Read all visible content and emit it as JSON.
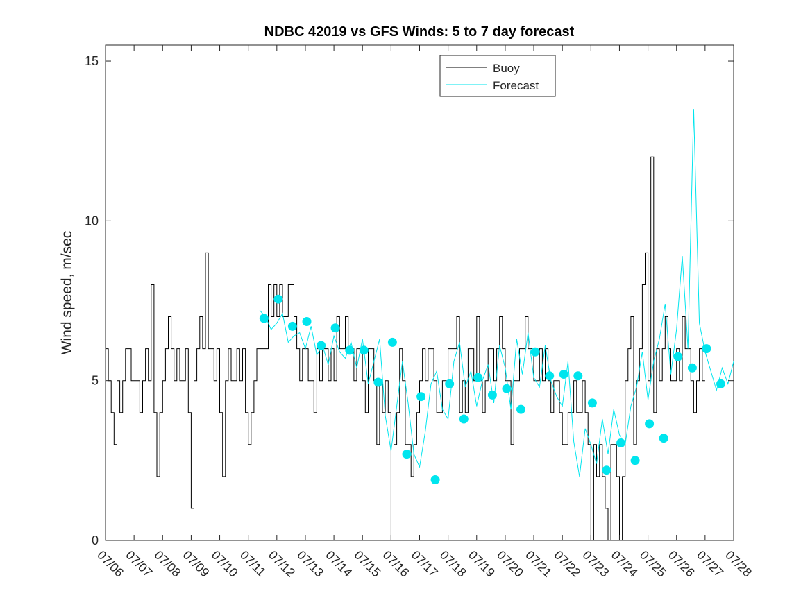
{
  "chart_data": {
    "type": "line",
    "title": "NDBC 42019 vs GFS Winds: 5 to 7 day forecast",
    "xlabel": "",
    "ylabel": "Wind speed, m/sec",
    "xlim": [
      "07/06",
      "07/28"
    ],
    "ylim": [
      0,
      15.5
    ],
    "yticks": [
      0,
      5,
      10,
      15
    ],
    "xtick_labels": [
      "07/06",
      "07/07",
      "07/08",
      "07/09",
      "07/10",
      "07/11",
      "07/12",
      "07/13",
      "07/14",
      "07/15",
      "07/16",
      "07/17",
      "07/18",
      "07/19",
      "07/20",
      "07/21",
      "07/22",
      "07/23",
      "07/24",
      "07/25",
      "07/26",
      "07/27",
      "07/28"
    ],
    "grid": false,
    "legend_position": "top-right",
    "colors": {
      "buoy": "#000000",
      "forecast": "#00e5ee"
    },
    "series": [
      {
        "name": "Buoy",
        "type": "step",
        "x_days_since_0706": [
          0,
          0.1,
          0.2,
          0.3,
          0.4,
          0.5,
          0.6,
          0.7,
          0.8,
          0.9,
          1,
          1.1,
          1.2,
          1.3,
          1.4,
          1.5,
          1.6,
          1.7,
          1.8,
          1.9,
          2,
          2.1,
          2.2,
          2.3,
          2.4,
          2.5,
          2.6,
          2.7,
          2.8,
          2.9,
          3,
          3.1,
          3.2,
          3.3,
          3.4,
          3.5,
          3.6,
          3.7,
          3.8,
          3.9,
          4,
          4.1,
          4.2,
          4.3,
          4.4,
          4.5,
          4.6,
          4.7,
          4.8,
          4.9,
          5,
          5.1,
          5.2,
          5.3,
          5.4,
          5.5,
          5.6,
          5.7,
          5.8,
          5.9,
          6,
          6.1,
          6.2,
          6.3,
          6.4,
          6.5,
          6.6,
          6.7,
          6.8,
          6.9,
          7,
          7.1,
          7.2,
          7.3,
          7.4,
          7.5,
          7.6,
          7.7,
          7.8,
          7.9,
          8,
          8.1,
          8.2,
          8.3,
          8.4,
          8.5,
          8.6,
          8.7,
          8.8,
          8.9,
          9,
          9.1,
          9.2,
          9.3,
          9.4,
          9.5,
          9.6,
          9.7,
          9.8,
          9.9,
          10,
          10.1,
          10.2,
          10.3,
          10.4,
          10.5,
          10.6,
          10.7,
          10.8,
          10.9,
          11,
          11.1,
          11.2,
          11.3,
          11.4,
          11.5,
          11.6,
          11.7,
          11.8,
          11.9,
          12,
          12.1,
          12.2,
          12.3,
          12.4,
          12.5,
          12.6,
          12.7,
          12.8,
          12.9,
          13,
          13.1,
          13.2,
          13.3,
          13.4,
          13.5,
          13.6,
          13.7,
          13.8,
          13.9,
          14,
          14.1,
          14.2,
          14.3,
          14.4,
          14.5,
          14.6,
          14.7,
          14.8,
          14.9,
          15,
          15.1,
          15.2,
          15.3,
          15.4,
          15.5,
          15.6,
          15.7,
          15.8,
          15.9,
          16,
          16.1,
          16.2,
          16.3,
          16.4,
          16.5,
          16.6,
          16.7,
          16.8,
          16.9,
          17,
          17.1,
          17.2,
          17.3,
          17.4,
          17.5,
          17.6,
          17.7,
          17.8,
          17.9,
          18,
          18.1,
          18.2,
          18.3,
          18.4,
          18.5,
          18.6,
          18.7,
          18.8,
          18.9,
          19,
          19.1,
          19.2,
          19.3,
          19.4,
          19.5,
          19.6,
          19.7,
          19.8,
          19.9,
          20,
          20.1,
          20.2,
          20.3,
          20.4,
          20.5,
          20.6,
          20.7,
          20.8,
          20.9,
          21,
          21.1,
          21.2,
          21.3,
          21.4,
          21.5,
          21.6,
          21.7,
          21.8,
          21.9
        ],
        "values": [
          6,
          5,
          4,
          3,
          5,
          4,
          5,
          6,
          6,
          5,
          5,
          5,
          4,
          5,
          6,
          5,
          8,
          4,
          2,
          4,
          5,
          6,
          7,
          6,
          5,
          6,
          5,
          5,
          6,
          4,
          1,
          5,
          6,
          7,
          6,
          9,
          6,
          6,
          5,
          6,
          4,
          2,
          5,
          6,
          5,
          5,
          6,
          5,
          6,
          4,
          3,
          4,
          5,
          6,
          6,
          6,
          6,
          8,
          7,
          8,
          7,
          8,
          7,
          7,
          8,
          8,
          7,
          6,
          5,
          6,
          6,
          5,
          5,
          4,
          6,
          5,
          6,
          6,
          5,
          6,
          5,
          7,
          6,
          6,
          7,
          6,
          6,
          5,
          6,
          6,
          5,
          4,
          6,
          6,
          5,
          3,
          5,
          4,
          5,
          4,
          0,
          3,
          4,
          6,
          5,
          3,
          3,
          2,
          3,
          4,
          5,
          6,
          5,
          6,
          6,
          5,
          4,
          4,
          5,
          5,
          6,
          6,
          6,
          7,
          4,
          5,
          4,
          6,
          6,
          5,
          7,
          5,
          4,
          5,
          6,
          6,
          5,
          6,
          7,
          6,
          5,
          5,
          3,
          5,
          5,
          6,
          6,
          7,
          6,
          6,
          5,
          5,
          6,
          5,
          6,
          5,
          4,
          5,
          5,
          4,
          3,
          3,
          4,
          4,
          5,
          4,
          4,
          5,
          4,
          3,
          0,
          3,
          2,
          3,
          2,
          1,
          0,
          3,
          3,
          2,
          0,
          2,
          5,
          6,
          7,
          3,
          5,
          6,
          8,
          9,
          5,
          12,
          4,
          6,
          5,
          6,
          7,
          6,
          5,
          5,
          6,
          5,
          7,
          6,
          6,
          5,
          4,
          5,
          6,
          5
        ]
      },
      {
        "name": "Forecast",
        "type": "line",
        "x_days_since_0706": [
          5.4,
          5.6,
          5.8,
          6.0,
          6.2,
          6.4,
          6.6,
          6.8,
          7.0,
          7.2,
          7.4,
          7.6,
          7.8,
          8.0,
          8.2,
          8.4,
          8.6,
          8.8,
          9.0,
          9.2,
          9.4,
          9.6,
          9.8,
          10.0,
          10.2,
          10.4,
          10.6,
          10.8,
          11.0,
          11.2,
          11.4,
          11.6,
          11.8,
          12.0,
          12.2,
          12.4,
          12.6,
          12.8,
          13.0,
          13.2,
          13.4,
          13.6,
          13.8,
          14.0,
          14.2,
          14.4,
          14.6,
          14.8,
          15.0,
          15.2,
          15.4,
          15.6,
          15.8,
          16.0,
          16.2,
          16.4,
          16.6,
          16.8,
          17.0,
          17.2,
          17.4,
          17.6,
          17.8,
          18.0,
          18.2,
          18.4,
          18.6,
          18.8,
          19.0,
          19.2,
          19.4,
          19.6,
          19.8,
          20.0,
          20.2,
          20.4,
          20.6,
          20.8,
          21.0,
          21.2,
          21.4,
          21.6,
          21.8,
          22.0
        ],
        "values": [
          7.2,
          7.0,
          6.6,
          6.8,
          7.1,
          6.2,
          6.4,
          6.5,
          6.0,
          6.7,
          5.8,
          6.1,
          5.5,
          6.4,
          5.9,
          5.7,
          6.2,
          5.4,
          6.3,
          4.9,
          5.6,
          6.3,
          3.9,
          2.8,
          4.2,
          5.6,
          4.3,
          2.7,
          2.3,
          3.4,
          4.9,
          5.3,
          4.1,
          3.8,
          5.6,
          6.2,
          4.8,
          5.3,
          4.2,
          5.0,
          5.5,
          4.3,
          6.1,
          5.4,
          4.1,
          6.3,
          5.2,
          6.5,
          5.1,
          4.8,
          6.1,
          5.0,
          4.5,
          4.2,
          5.6,
          3.1,
          2.0,
          3.5,
          3.0,
          2.4,
          3.8,
          2.7,
          4.1,
          3.3,
          3.0,
          4.2,
          4.8,
          5.9,
          4.4,
          5.6,
          6.3,
          7.4,
          5.2,
          6.6,
          8.9,
          6.0,
          13.5,
          6.8,
          5.9,
          5.3,
          4.7,
          5.4,
          4.9,
          5.6
        ]
      },
      {
        "name": "",
        "type": "markers",
        "x_days_since_0706": [
          5.55,
          6.05,
          6.55,
          7.05,
          7.55,
          8.05,
          8.55,
          9.05,
          9.55,
          10.05,
          10.55,
          11.05,
          11.55,
          12.05,
          12.55,
          13.05,
          13.55,
          14.05,
          14.55,
          15.05,
          15.55,
          16.05,
          16.55,
          17.05,
          17.55,
          18.05,
          18.55,
          19.05,
          19.55,
          20.05,
          20.55,
          21.05,
          21.55
        ],
        "values": [
          6.95,
          7.55,
          6.7,
          6.85,
          6.1,
          6.65,
          5.95,
          5.95,
          4.95,
          6.2,
          2.7,
          4.5,
          1.9,
          4.9,
          3.8,
          5.1,
          4.55,
          4.75,
          4.1,
          5.9,
          5.15,
          5.2,
          5.15,
          4.3,
          2.2,
          3.05,
          2.5,
          3.65,
          3.2,
          5.75,
          5.4,
          6.0,
          4.9
        ]
      }
    ]
  },
  "legend": {
    "items": [
      {
        "label": "Buoy",
        "color": "#000000"
      },
      {
        "label": "Forecast",
        "color": "#00e5ee"
      }
    ]
  }
}
